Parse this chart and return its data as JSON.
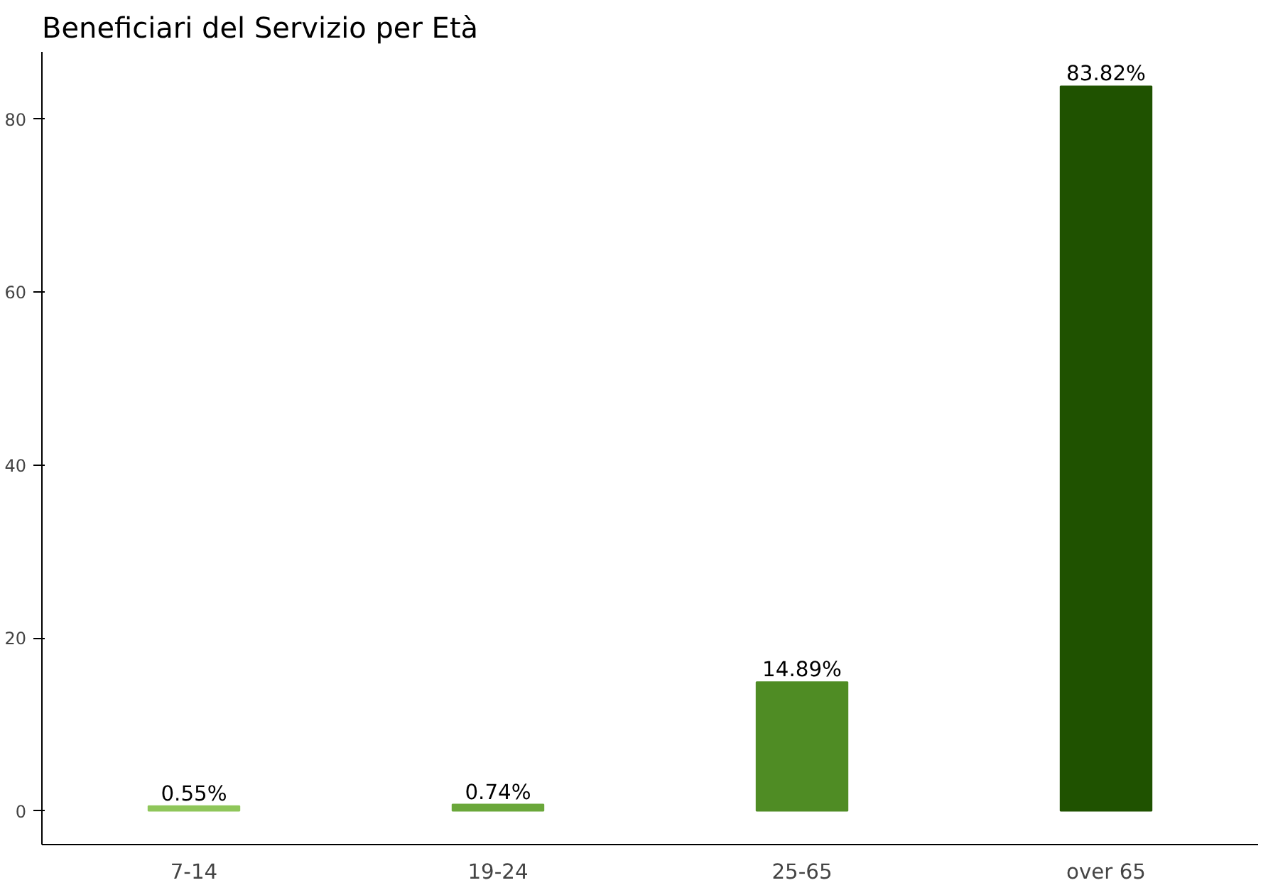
{
  "chart_data": {
    "type": "bar",
    "title": "Beneficiari del Servizio per Età",
    "categories": [
      "7-14",
      "19-24",
      "25-65",
      "over 65"
    ],
    "values": [
      0.55,
      0.74,
      14.89,
      83.82
    ],
    "colors": [
      "#8fc65a",
      "#6aa73a",
      "#4f8c24",
      "#1f5200"
    ],
    "value_labels": [
      "0.55%",
      "0.74%",
      "14.89%",
      "83.82%"
    ],
    "ylim": [
      -3.9,
      87.8
    ],
    "yticks": [
      0,
      20,
      40,
      60,
      80
    ],
    "grid": false
  }
}
